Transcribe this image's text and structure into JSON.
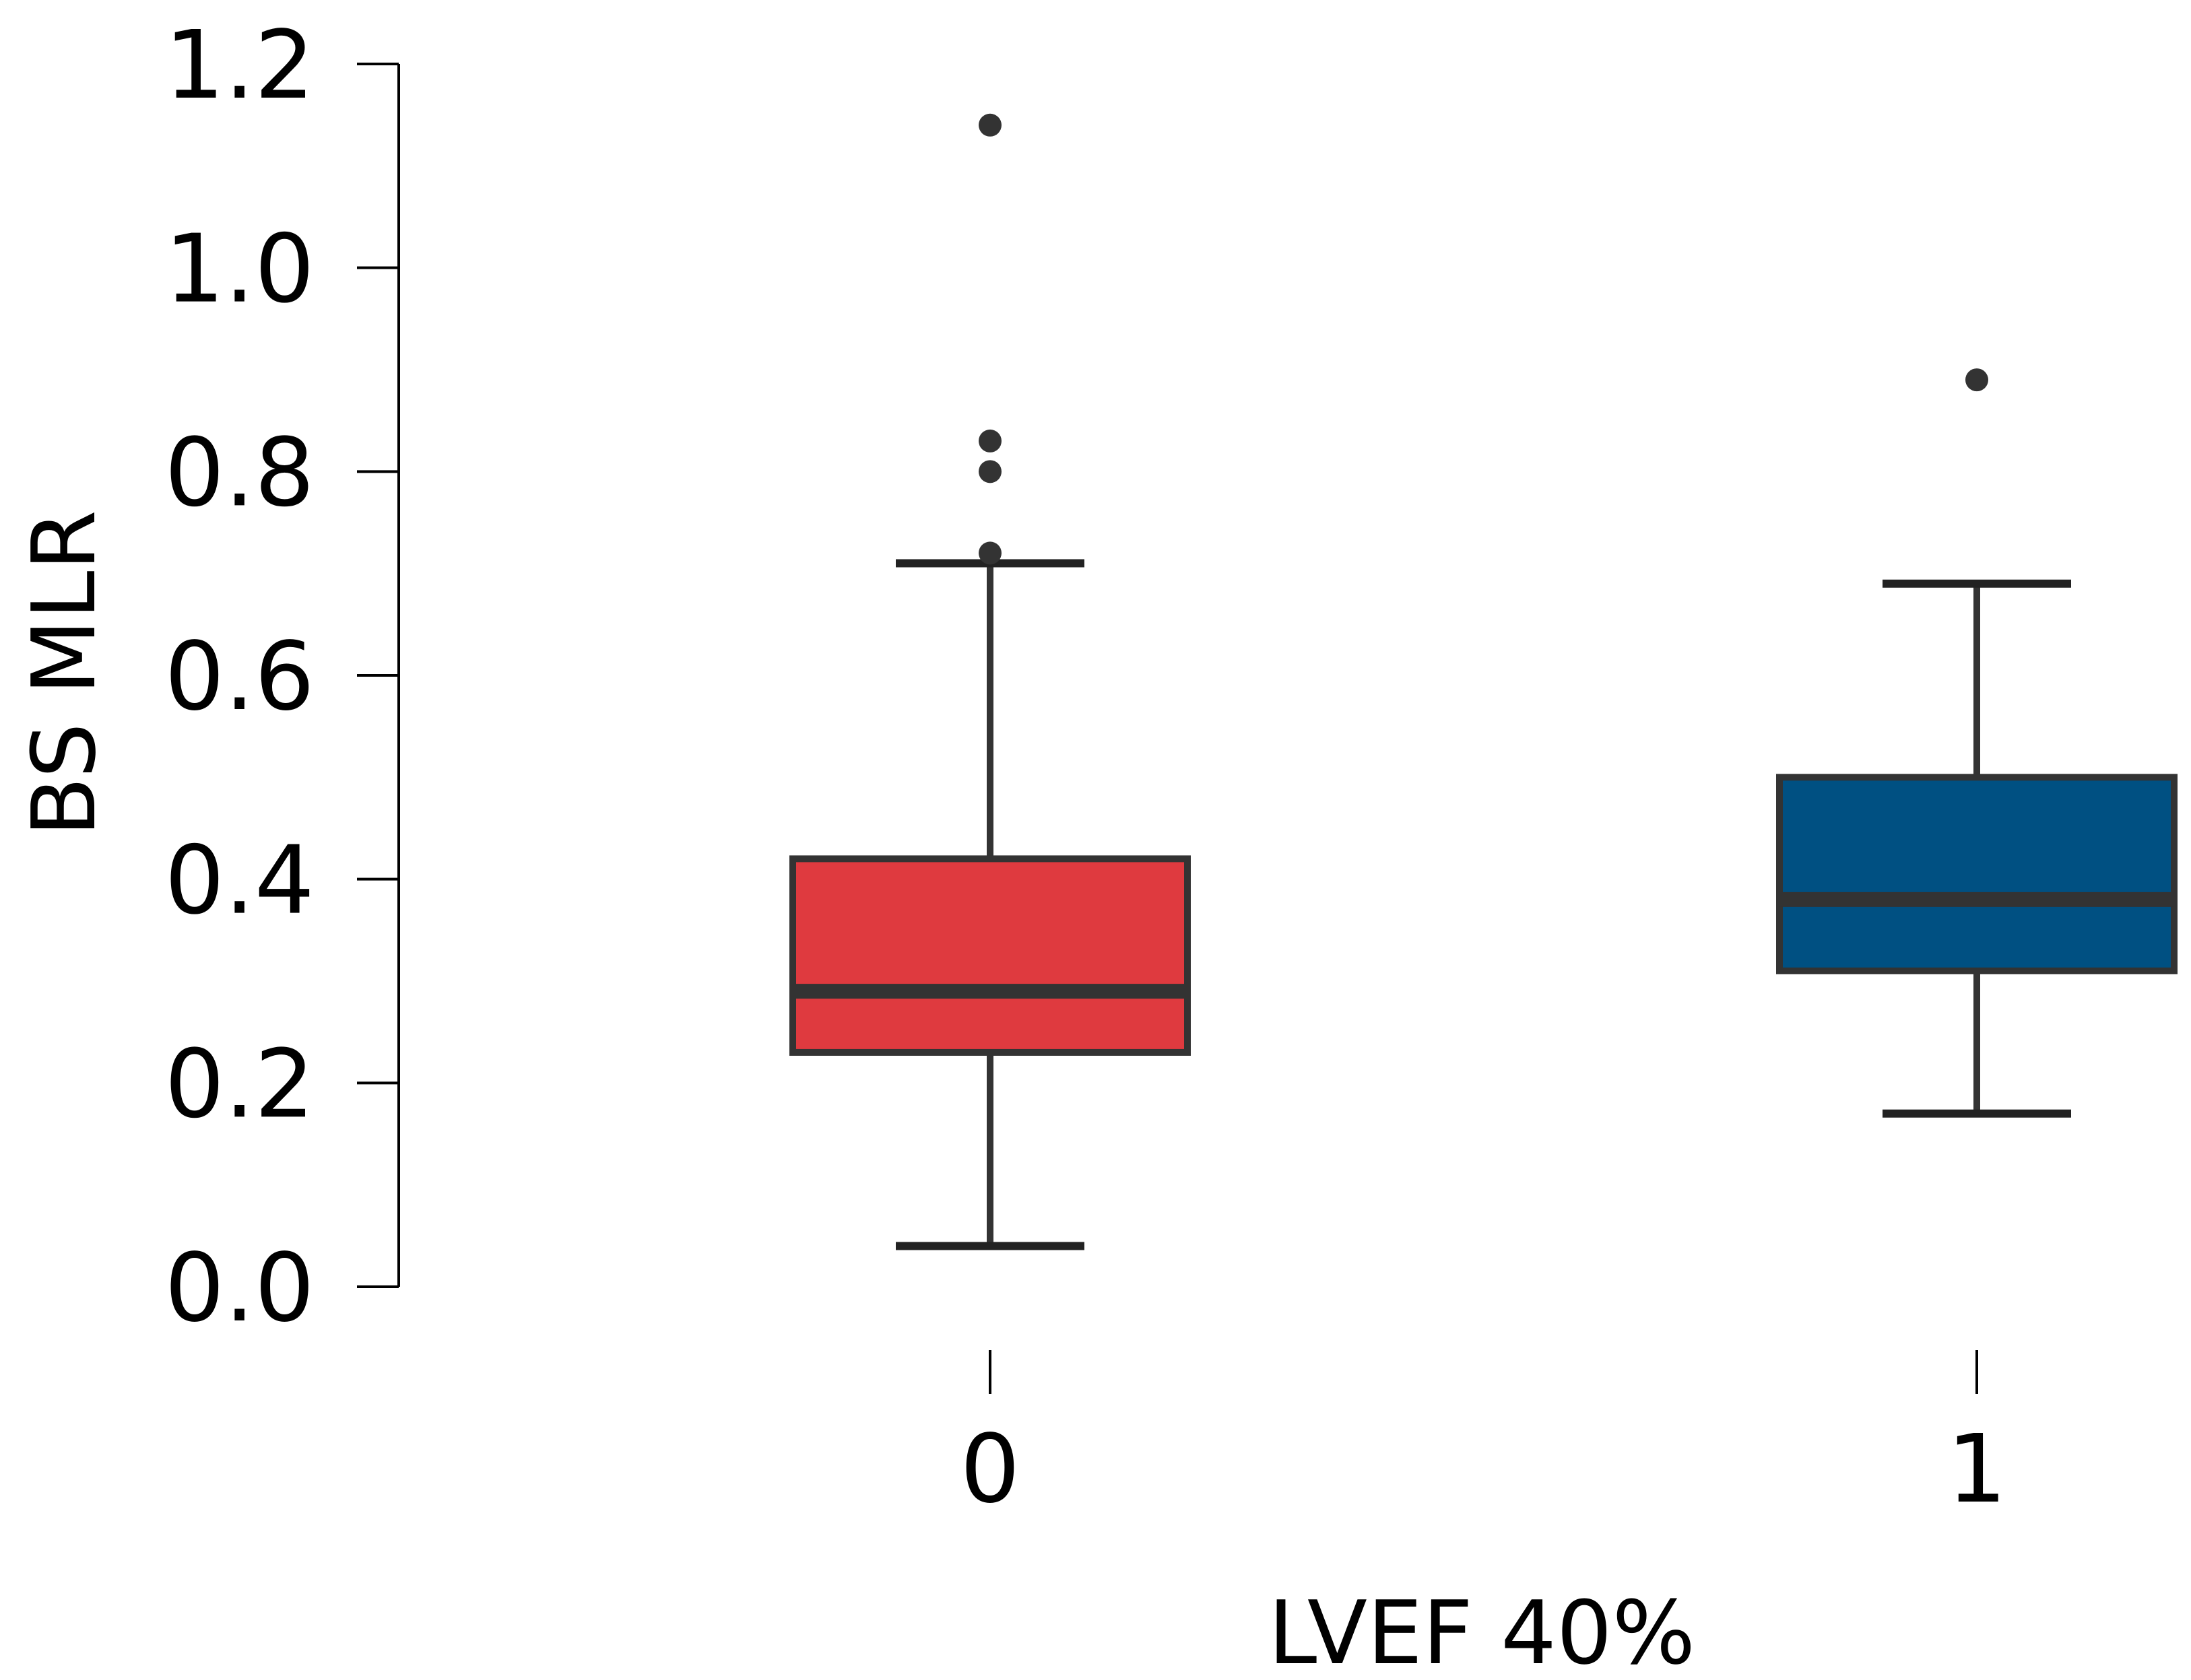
{
  "chart_data": {
    "type": "box",
    "title": "",
    "xlabel": "LVEF 40%",
    "ylabel": "BS MLR",
    "ylim": [
      0.0,
      1.2
    ],
    "yticks": [
      "0.0",
      "0.2",
      "0.4",
      "0.6",
      "0.8",
      "1.0",
      "1.2"
    ],
    "categories": [
      "0",
      "1"
    ],
    "boxes": [
      {
        "category": "0",
        "whisker_low": 0.04,
        "q1": 0.23,
        "median": 0.29,
        "q3": 0.42,
        "whisker_high": 0.71,
        "outliers": [
          0.72,
          0.8,
          0.83,
          1.14
        ],
        "color": "#df3a3f"
      },
      {
        "category": "1",
        "whisker_low": 0.17,
        "q1": 0.31,
        "median": 0.38,
        "q3": 0.5,
        "whisker_high": 0.69,
        "outliers": [
          0.89
        ],
        "color": "#005082"
      }
    ],
    "line_color": "#333333"
  }
}
